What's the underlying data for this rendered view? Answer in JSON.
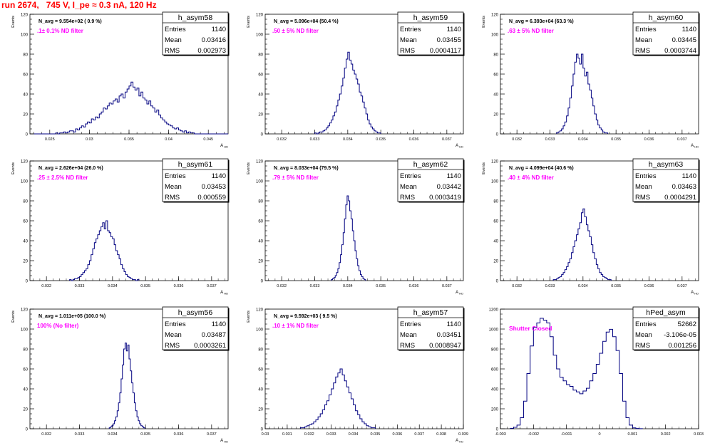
{
  "page": {
    "run_title": "run 2674,   745 V, I_pe ≈ 0.3 nA, 120 Hz"
  },
  "colors": {
    "histogram_line": "#000080",
    "annotation_magenta": "#ff00ff",
    "title_red": "#ff0000",
    "axis": "#000000"
  },
  "chart_data": [
    {
      "type": "histogram",
      "name": "h_asym58",
      "stats": {
        "Entries": "1140",
        "Mean": "0.03416",
        "RMS": "0.002973"
      },
      "navg": "N_avg = 9.554e+02 ( 0.9 %)",
      "filter": ".1± 0.1% ND filter",
      "ylabel": "Events",
      "xlabel": "A_{HD}",
      "xlim": [
        0.0225,
        0.0475
      ],
      "ylim": [
        0,
        120
      ],
      "yticks": [
        "0",
        "20",
        "40",
        "60",
        "80",
        "100",
        "120"
      ],
      "xticks": [
        0.025,
        0.03,
        0.035,
        0.04,
        0.045
      ],
      "xtick_labels": [
        "0.025",
        "0.03",
        "0.035",
        "0.04",
        "0.045"
      ],
      "bin_start": 0.023,
      "bin_width": 0.00025,
      "counts": [
        0,
        0,
        0,
        0,
        0,
        0,
        0,
        0,
        0,
        0,
        0,
        1,
        0,
        1,
        1,
        2,
        1,
        2,
        3,
        3,
        2,
        5,
        4,
        6,
        8,
        7,
        10,
        12,
        11,
        15,
        14,
        17,
        16,
        20,
        22,
        26,
        25,
        28,
        31,
        30,
        33,
        35,
        32,
        38,
        40,
        36,
        42,
        45,
        48,
        52,
        47,
        44,
        46,
        38,
        42,
        36,
        34,
        30,
        33,
        28,
        26,
        22,
        24,
        19,
        16,
        14,
        12,
        10,
        9,
        8,
        6,
        5,
        6,
        4,
        3,
        2,
        3,
        1,
        2,
        1,
        1,
        0,
        0,
        0,
        0,
        0,
        0,
        0,
        0,
        0,
        0,
        0,
        0,
        0,
        0,
        0,
        0,
        0
      ]
    },
    {
      "type": "histogram",
      "name": "h_asym59",
      "stats": {
        "Entries": "1140",
        "Mean": "0.03455",
        "RMS": "0.0004117"
      },
      "navg": "N_avg = 5.096e+04 (50.4 %)",
      "filter": ".50 ± 5% ND filter",
      "ylabel": "Events",
      "xlabel": "A_{HD}",
      "xlim": [
        0.0315,
        0.0375
      ],
      "ylim": [
        0,
        120
      ],
      "yticks": [
        "0",
        "20",
        "40",
        "60",
        "80",
        "100",
        "120"
      ],
      "xticks": [
        0.032,
        0.033,
        0.034,
        0.035,
        0.036,
        0.037
      ],
      "xtick_labels": [
        "0.032",
        "0.033",
        "0.034",
        "0.035",
        "0.036",
        "0.037"
      ],
      "bin_start": 0.033,
      "bin_width": 5e-05,
      "counts": [
        1,
        0,
        1,
        2,
        2,
        3,
        4,
        6,
        8,
        11,
        14,
        18,
        22,
        28,
        34,
        40,
        48,
        56,
        66,
        75,
        82,
        74,
        70,
        64,
        60,
        55,
        50,
        42,
        38,
        32,
        26,
        20,
        14,
        10,
        7,
        5,
        3,
        2,
        1,
        1
      ]
    },
    {
      "type": "histogram",
      "name": "h_asym60",
      "stats": {
        "Entries": "1140",
        "Mean": "0.03445",
        "RMS": "0.0003744"
      },
      "navg": "N_avg = 6.393e+04 (63.3 %)",
      "filter": ".63 ± 5% ND filter",
      "ylabel": "Events",
      "xlabel": "A_{HD}",
      "xlim": [
        0.0315,
        0.0375
      ],
      "ylim": [
        0,
        120
      ],
      "yticks": [
        "0",
        "20",
        "40",
        "60",
        "80",
        "100",
        "120"
      ],
      "xticks": [
        0.032,
        0.033,
        0.034,
        0.035,
        0.036,
        0.037
      ],
      "xtick_labels": [
        "0.032",
        "0.033",
        "0.034",
        "0.035",
        "0.036",
        "0.037"
      ],
      "bin_start": 0.0332,
      "bin_width": 5e-05,
      "counts": [
        1,
        2,
        3,
        5,
        8,
        12,
        18,
        26,
        36,
        48,
        60,
        72,
        80,
        76,
        70,
        80,
        66,
        58,
        62,
        50,
        44,
        36,
        28,
        20,
        14,
        9,
        6,
        4,
        2,
        1,
        1
      ]
    },
    {
      "type": "histogram",
      "name": "h_asym61",
      "stats": {
        "Entries": "1140",
        "Mean": "0.03453",
        "RMS": "0.000559"
      },
      "navg": "N_avg = 2.626e+04 (26.0 %)",
      "filter": ".25 ± 2.5% ND filter",
      "ylabel": "Events",
      "xlabel": "A_{HD}",
      "xlim": [
        0.0315,
        0.0375
      ],
      "ylim": [
        0,
        120
      ],
      "yticks": [
        "0",
        "20",
        "40",
        "60",
        "80",
        "100",
        "120"
      ],
      "xticks": [
        0.032,
        0.033,
        0.034,
        0.035,
        0.036,
        0.037
      ],
      "xtick_labels": [
        "0.032",
        "0.033",
        "0.034",
        "0.035",
        "0.036",
        "0.037"
      ],
      "bin_start": 0.0327,
      "bin_width": 5e-05,
      "counts": [
        1,
        0,
        1,
        2,
        2,
        3,
        4,
        6,
        8,
        10,
        12,
        16,
        20,
        26,
        32,
        38,
        42,
        46,
        50,
        54,
        58,
        52,
        60,
        50,
        48,
        44,
        42,
        36,
        30,
        26,
        22,
        16,
        12,
        9,
        6,
        4,
        3,
        2,
        1,
        1,
        0,
        1
      ]
    },
    {
      "type": "histogram",
      "name": "h_asym62",
      "stats": {
        "Entries": "1140",
        "Mean": "0.03442",
        "RMS": "0.0003419"
      },
      "navg": "N_avg = 8.033e+04 (79.5 %)",
      "filter": ".79 ± 5% ND filter",
      "ylabel": "Events",
      "xlabel": "A_{HD}",
      "xlim": [
        0.0315,
        0.0375
      ],
      "ylim": [
        0,
        120
      ],
      "yticks": [
        "0",
        "20",
        "40",
        "60",
        "80",
        "100",
        "120"
      ],
      "xticks": [
        0.032,
        0.033,
        0.034,
        0.035,
        0.036,
        0.037
      ],
      "xtick_labels": [
        "0.032",
        "0.033",
        "0.034",
        "0.035",
        "0.036",
        "0.037"
      ],
      "bin_start": 0.0335,
      "bin_width": 4e-05,
      "counts": [
        1,
        2,
        3,
        5,
        8,
        12,
        18,
        26,
        36,
        48,
        62,
        76,
        85,
        80,
        70,
        62,
        50,
        40,
        30,
        22,
        15,
        10,
        6,
        4,
        2,
        1
      ]
    },
    {
      "type": "histogram",
      "name": "h_asym63",
      "stats": {
        "Entries": "1140",
        "Mean": "0.03463",
        "RMS": "0.0004291"
      },
      "navg": "N_avg = 4.099e+04 (40.6 %)",
      "filter": ".40 ± 4% ND filter",
      "ylabel": "Events",
      "xlabel": "A_{HD}",
      "xlim": [
        0.0315,
        0.0375
      ],
      "ylim": [
        0,
        120
      ],
      "yticks": [
        "0",
        "20",
        "40",
        "60",
        "80",
        "100",
        "120"
      ],
      "xticks": [
        0.032,
        0.033,
        0.034,
        0.035,
        0.036,
        0.037
      ],
      "xtick_labels": [
        "0.032",
        "0.033",
        "0.034",
        "0.035",
        "0.036",
        "0.037"
      ],
      "bin_start": 0.0331,
      "bin_width": 5e-05,
      "counts": [
        1,
        1,
        2,
        3,
        4,
        6,
        8,
        11,
        14,
        18,
        22,
        28,
        34,
        40,
        46,
        52,
        58,
        68,
        72,
        64,
        56,
        50,
        44,
        36,
        28,
        22,
        16,
        12,
        8,
        6,
        4,
        3,
        2,
        1,
        1
      ]
    },
    {
      "type": "histogram",
      "name": "h_asym56",
      "stats": {
        "Entries": "1140",
        "Mean": "0.03487",
        "RMS": "0.0003261"
      },
      "navg": "N_avg = 1.011e+05 (100.0 %)",
      "filter": "100% (No filter)",
      "ylabel": "Events",
      "xlabel": "A_{HD}",
      "xlim": [
        0.0315,
        0.0375
      ],
      "ylim": [
        0,
        120
      ],
      "yticks": [
        "0",
        "20",
        "40",
        "60",
        "80",
        "100",
        "120"
      ],
      "xticks": [
        0.032,
        0.033,
        0.034,
        0.035,
        0.036,
        0.037
      ],
      "xtick_labels": [
        "0.032",
        "0.033",
        "0.034",
        "0.035",
        "0.036",
        "0.037"
      ],
      "bin_start": 0.0339,
      "bin_width": 4e-05,
      "counts": [
        1,
        2,
        3,
        5,
        8,
        12,
        18,
        26,
        36,
        50,
        64,
        80,
        86,
        78,
        84,
        70,
        58,
        46,
        36,
        26,
        18,
        12,
        8,
        5,
        3,
        2,
        1
      ]
    },
    {
      "type": "histogram",
      "name": "h_asym57",
      "stats": {
        "Entries": "1140",
        "Mean": "0.03451",
        "RMS": "0.0008947"
      },
      "navg": "N_avg = 9.592e+03 ( 9.5 %)",
      "filter": ".10 ± 1% ND filter",
      "ylabel": "Events",
      "xlabel": "A_{HD}",
      "xlim": [
        0.03,
        0.039
      ],
      "ylim": [
        0,
        120
      ],
      "yticks": [
        "0",
        "20",
        "40",
        "60",
        "80",
        "100",
        "120"
      ],
      "xticks": [
        0.03,
        0.031,
        0.032,
        0.033,
        0.034,
        0.035,
        0.036,
        0.037,
        0.038,
        0.039
      ],
      "xtick_labels": [
        "0.03",
        "0.031",
        "0.032",
        "0.033",
        "0.034",
        "0.035",
        "0.036",
        "0.037",
        "0.038",
        "0.039"
      ],
      "bin_start": 0.0316,
      "bin_width": 0.0001,
      "counts": [
        1,
        1,
        2,
        3,
        4,
        5,
        7,
        9,
        12,
        15,
        19,
        24,
        28,
        34,
        40,
        46,
        52,
        56,
        60,
        54,
        48,
        42,
        36,
        30,
        24,
        18,
        14,
        10,
        7,
        5,
        3,
        2,
        1,
        1
      ]
    },
    {
      "type": "histogram",
      "name": "hPed_asym",
      "stats": {
        "Entries": "52662",
        "Mean": "-3.106e-05",
        "RMS": "0.001256"
      },
      "annotation": "Shutter Closed",
      "ylabel": "",
      "xlabel": "",
      "xlim": [
        -0.003,
        0.003
      ],
      "ylim": [
        0,
        1300
      ],
      "yticks": [
        "0",
        "200",
        "400",
        "600",
        "800",
        "1000",
        "1200"
      ],
      "xticks": [
        -0.003,
        -0.002,
        -0.001,
        0,
        0.001,
        0.002,
        0.003
      ],
      "xtick_labels": [
        "-0.003",
        "-0.002",
        "-0.001",
        "0",
        "0.001",
        "0.002",
        "0.003"
      ],
      "bin_start": -0.0027,
      "bin_width": 0.0001,
      "counts": [
        5,
        15,
        40,
        120,
        300,
        600,
        900,
        1100,
        1150,
        1200,
        1180,
        1150,
        1000,
        800,
        650,
        560,
        520,
        480,
        460,
        420,
        400,
        380,
        410,
        440,
        520,
        600,
        700,
        820,
        950,
        1050,
        1080,
        1000,
        850,
        600,
        300,
        120,
        40,
        10,
        3,
        1
      ]
    }
  ]
}
